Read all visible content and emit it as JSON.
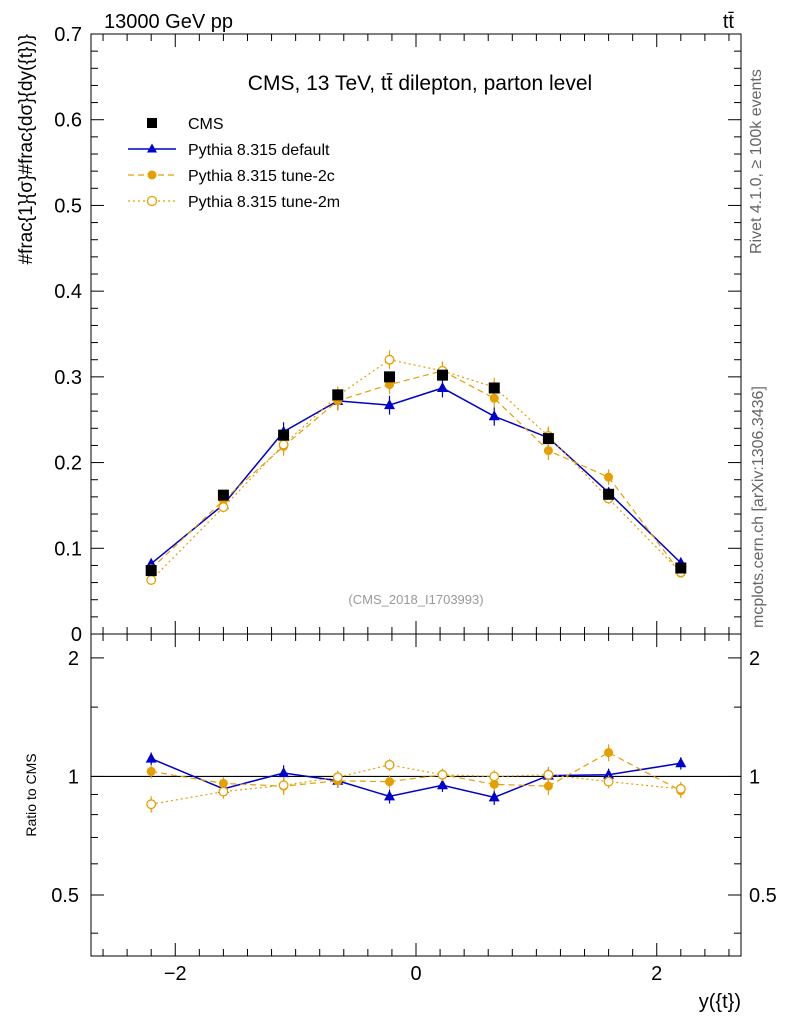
{
  "header": {
    "energy_label": "13000 GeV pp",
    "process_label": "tt̄"
  },
  "side_labels": {
    "rivet": "Rivet 4.1.0, ≥ 100k events",
    "mcplots": "mcplots.cern.ch [arXiv:1306.3436]"
  },
  "chart_data": {
    "type": "line",
    "title": "CMS, 13 TeV, tt̄ dilepton, parton level",
    "watermark": "(CMS_2018_I1703993)",
    "xlabel": "y({t})",
    "ylabel": "#frac{1}{σ}#frac{dσ}{dy({t})}",
    "ratio_ylabel": "Ratio to CMS",
    "xlim": [
      -2.7,
      2.7
    ],
    "ylim": [
      0,
      0.7
    ],
    "ratio_ylim": [
      0.35,
      2.3
    ],
    "x_ticks": [
      "−2",
      "0",
      "2"
    ],
    "x_tick_values": [
      -2,
      0,
      2
    ],
    "y_ticks": [
      "0",
      "0.1",
      "0.2",
      "0.3",
      "0.4",
      "0.5",
      "0.6",
      "0.7"
    ],
    "y_tick_values": [
      0,
      0.1,
      0.2,
      0.3,
      0.4,
      0.5,
      0.6,
      0.7
    ],
    "ratio_ticks": [
      "0.5",
      "1",
      "2"
    ],
    "ratio_tick_values": [
      0.5,
      1,
      2
    ],
    "x": [
      -2.2,
      -1.6,
      -1.1,
      -0.65,
      -0.22,
      0.22,
      0.65,
      1.1,
      1.6,
      2.2
    ],
    "series": [
      {
        "name": "CMS",
        "color": "#000000",
        "marker": "square",
        "values": [
          0.074,
          0.162,
          0.232,
          0.279,
          0.3,
          0.302,
          0.287,
          0.228,
          0.163,
          0.077
        ],
        "errors": [
          0.003,
          0.004,
          0.006,
          0.006,
          0.006,
          0.006,
          0.006,
          0.006,
          0.004,
          0.003
        ]
      },
      {
        "name": "Pythia 8.315 default",
        "color": "#0000cc",
        "marker": "triangle",
        "line": "solid",
        "values": [
          0.082,
          0.151,
          0.236,
          0.272,
          0.267,
          0.287,
          0.254,
          0.229,
          0.165,
          0.083
        ],
        "errors": [
          0.003,
          0.005,
          0.011,
          0.011,
          0.011,
          0.011,
          0.011,
          0.011,
          0.006,
          0.003
        ]
      },
      {
        "name": "Pythia 8.315 tune-2c",
        "color": "#e69f00",
        "marker": "circle",
        "line": "dashed",
        "values": [
          0.076,
          0.156,
          0.219,
          0.272,
          0.291,
          0.307,
          0.275,
          0.214,
          0.183,
          0.071
        ],
        "errors": [
          0.003,
          0.006,
          0.011,
          0.011,
          0.011,
          0.011,
          0.011,
          0.011,
          0.009,
          0.003
        ]
      },
      {
        "name": "Pythia 8.315 tune-2m",
        "color": "#e69f00",
        "marker": "open-circle",
        "line": "dotted",
        "values": [
          0.063,
          0.148,
          0.221,
          0.278,
          0.32,
          0.307,
          0.288,
          0.231,
          0.158,
          0.072
        ],
        "errors": [
          0.003,
          0.006,
          0.011,
          0.011,
          0.011,
          0.011,
          0.011,
          0.011,
          0.006,
          0.003
        ]
      }
    ],
    "ratio_series": [
      {
        "name": "Pythia 8.315 default",
        "values": [
          1.11,
          0.93,
          1.02,
          0.975,
          0.89,
          0.95,
          0.885,
          1.005,
          1.01,
          1.08
        ]
      },
      {
        "name": "Pythia 8.315 tune-2c",
        "values": [
          1.03,
          0.96,
          0.945,
          0.975,
          0.97,
          1.01,
          0.955,
          0.945,
          1.15,
          0.92
        ]
      },
      {
        "name": "Pythia 8.315 tune-2m",
        "values": [
          0.85,
          0.915,
          0.95,
          0.995,
          1.07,
          1.01,
          1.0,
          1.01,
          0.97,
          0.93
        ]
      }
    ]
  }
}
